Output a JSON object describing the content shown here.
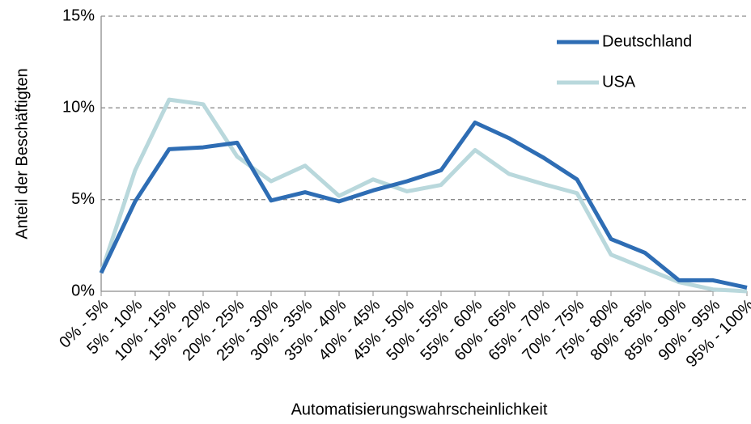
{
  "chart_data": {
    "type": "line",
    "x_label": "Automatisierungswahrscheinlichkeit",
    "y_label": "Anteil der Beschäftigten",
    "categories": [
      "0% - 5%",
      "5% - 10%",
      "10% - 15%",
      "15% - 20%",
      "20% - 25%",
      "25% - 30%",
      "30% - 35%",
      "35% - 40%",
      "40% - 45%",
      "45% - 50%",
      "50% - 55%",
      "55% - 60%",
      "60% - 65%",
      "65% - 70%",
      "70% - 75%",
      "75% - 80%",
      "80% - 85%",
      "85% - 90%",
      "90% - 95%",
      "95% - 100%"
    ],
    "series": [
      {
        "name": "Deutschland",
        "color": "#2e6db4",
        "values": [
          1.0,
          4.9,
          7.75,
          7.85,
          8.1,
          4.95,
          5.4,
          4.9,
          5.5,
          6.0,
          6.6,
          9.2,
          8.35,
          7.3,
          6.1,
          2.85,
          2.1,
          0.6,
          0.6,
          0.2
        ]
      },
      {
        "name": "USA",
        "color": "#b9d8dc",
        "values": [
          1.0,
          6.6,
          10.45,
          10.2,
          7.35,
          6.0,
          6.85,
          5.2,
          6.1,
          5.45,
          5.8,
          7.7,
          6.4,
          5.85,
          5.35,
          2.0,
          1.25,
          0.5,
          0.1,
          0.0
        ]
      }
    ],
    "ylim": [
      0,
      15
    ],
    "yticks": [
      {
        "value": 0,
        "label": "0%"
      },
      {
        "value": 5,
        "label": "5%"
      },
      {
        "value": 10,
        "label": "10%"
      },
      {
        "value": 15,
        "label": "15%"
      }
    ],
    "grid": true,
    "legend": "upper right"
  }
}
